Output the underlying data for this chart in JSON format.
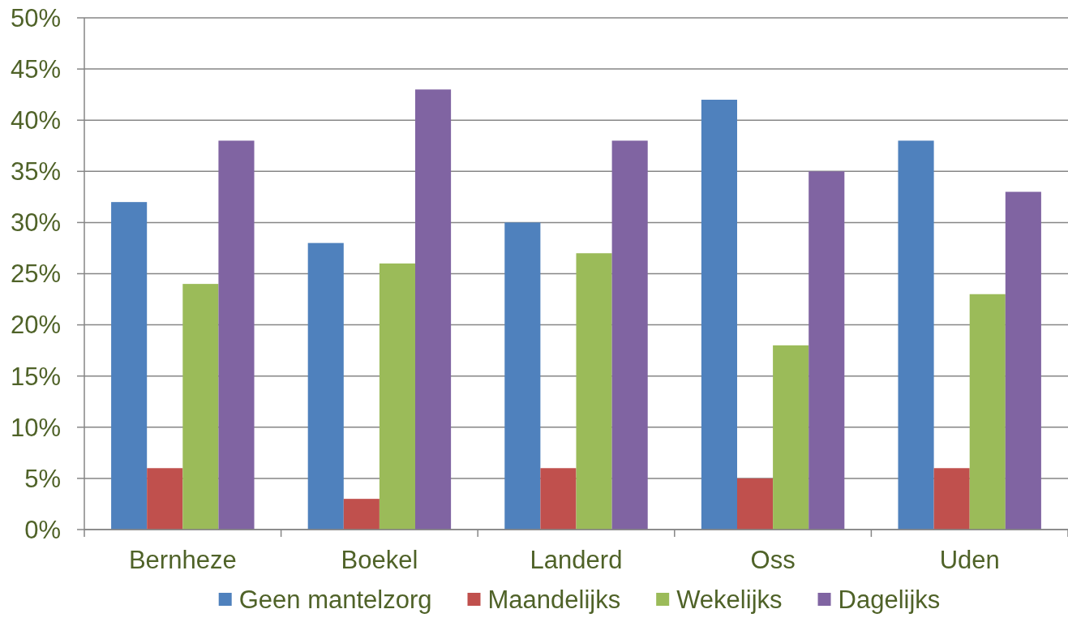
{
  "chart_data": {
    "type": "bar",
    "categories": [
      "Bernheze",
      "Boekel",
      "Landerd",
      "Oss",
      "Uden"
    ],
    "series": [
      {
        "name": "Geen mantelzorg",
        "color": "#4f81bd",
        "values": [
          32,
          28,
          30,
          42,
          38
        ]
      },
      {
        "name": "Maandelijks",
        "color": "#c0504d",
        "values": [
          6,
          3,
          6,
          5,
          6
        ]
      },
      {
        "name": "Wekelijks",
        "color": "#9bbb59",
        "values": [
          24,
          26,
          27,
          18,
          23
        ]
      },
      {
        "name": "Dagelijks",
        "color": "#8064a2",
        "values": [
          38,
          43,
          38,
          35,
          33
        ]
      }
    ],
    "ylim": [
      0,
      50
    ],
    "yticks": [
      {
        "value": 0,
        "label": "0%"
      },
      {
        "value": 5,
        "label": "5%"
      },
      {
        "value": 10,
        "label": "10%"
      },
      {
        "value": 15,
        "label": "15%"
      },
      {
        "value": 20,
        "label": "20%"
      },
      {
        "value": 25,
        "label": "25%"
      },
      {
        "value": 30,
        "label": "30%"
      },
      {
        "value": 35,
        "label": "35%"
      },
      {
        "value": 40,
        "label": "40%"
      },
      {
        "value": 45,
        "label": "45%"
      },
      {
        "value": 50,
        "label": "50%"
      }
    ],
    "grid": "y",
    "legend": "bottom"
  }
}
